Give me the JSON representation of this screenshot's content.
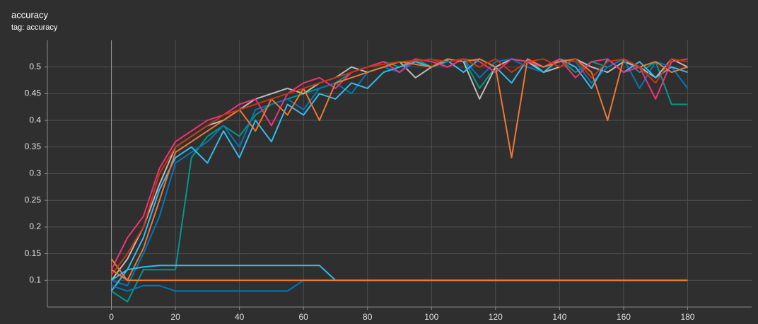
{
  "chart_data": {
    "type": "line",
    "title": "accuracy",
    "subtitle": "tag: accuracy",
    "x": [
      0,
      5,
      10,
      15,
      20,
      25,
      30,
      35,
      40,
      45,
      50,
      55,
      60,
      65,
      70,
      75,
      80,
      85,
      90,
      95,
      100,
      105,
      110,
      115,
      120,
      125,
      130,
      135,
      140,
      145,
      150,
      155,
      160,
      165,
      170,
      175,
      180
    ],
    "xlim": [
      -20,
      200
    ],
    "xticks": [
      0,
      20,
      40,
      60,
      80,
      100,
      120,
      140,
      160,
      180
    ],
    "ylim": [
      0.05,
      0.55
    ],
    "yticks": [
      0.1,
      0.15,
      0.2,
      0.25,
      0.3,
      0.35,
      0.4,
      0.45,
      0.5
    ],
    "grid": true,
    "series": [
      {
        "color": "#009988",
        "values": [
          0.08,
          0.06,
          0.12,
          0.12,
          0.12,
          0.33,
          0.37,
          0.39,
          0.37,
          0.41,
          0.43,
          0.44,
          0.45,
          0.46,
          0.47,
          0.49,
          0.5,
          0.51,
          0.5,
          0.515,
          0.5,
          0.51,
          0.515,
          0.46,
          0.5,
          0.515,
          0.51,
          0.5,
          0.515,
          0.49,
          0.51,
          0.5,
          0.515,
          0.49,
          0.51,
          0.43,
          0.43
        ]
      },
      {
        "color": "#bbbbbb",
        "values": [
          0.1,
          0.14,
          0.2,
          0.28,
          0.35,
          0.37,
          0.39,
          0.4,
          0.42,
          0.44,
          0.45,
          0.46,
          0.45,
          0.47,
          0.48,
          0.5,
          0.49,
          0.5,
          0.51,
          0.48,
          0.5,
          0.515,
          0.51,
          0.44,
          0.5,
          0.515,
          0.51,
          0.49,
          0.5,
          0.515,
          0.5,
          0.49,
          0.51,
          0.5,
          0.48,
          0.515,
          0.5
        ]
      },
      {
        "color": "#0077bb",
        "values": [
          0.1,
          0.09,
          0.15,
          0.22,
          0.32,
          0.34,
          0.36,
          0.39,
          0.35,
          0.42,
          0.43,
          0.44,
          0.42,
          0.46,
          0.47,
          0.45,
          0.49,
          0.5,
          0.49,
          0.51,
          0.515,
          0.5,
          0.515,
          0.48,
          0.51,
          0.515,
          0.5,
          0.49,
          0.515,
          0.51,
          0.47,
          0.5,
          0.515,
          0.46,
          0.51,
          0.5,
          0.46
        ]
      },
      {
        "color": "#33bbee",
        "values": [
          0.08,
          0.12,
          0.18,
          0.27,
          0.33,
          0.35,
          0.32,
          0.38,
          0.33,
          0.4,
          0.36,
          0.43,
          0.41,
          0.45,
          0.44,
          0.47,
          0.46,
          0.49,
          0.5,
          0.51,
          0.5,
          0.512,
          0.49,
          0.515,
          0.5,
          0.47,
          0.515,
          0.49,
          0.515,
          0.5,
          0.46,
          0.515,
          0.49,
          0.51,
          0.48,
          0.5,
          0.49
        ]
      },
      {
        "color": "#ee3377",
        "values": [
          0.12,
          0.18,
          0.22,
          0.31,
          0.36,
          0.38,
          0.4,
          0.41,
          0.43,
          0.44,
          0.39,
          0.45,
          0.47,
          0.48,
          0.46,
          0.49,
          0.5,
          0.51,
          0.49,
          0.515,
          0.51,
          0.5,
          0.515,
          0.51,
          0.49,
          0.515,
          0.51,
          0.5,
          0.515,
          0.48,
          0.51,
          0.515,
          0.49,
          0.5,
          0.44,
          0.51,
          0.515
        ]
      },
      {
        "color": "#ee7733",
        "values": [
          0.14,
          0.1,
          0.16,
          0.25,
          0.34,
          0.36,
          0.38,
          0.4,
          0.42,
          0.38,
          0.44,
          0.41,
          0.46,
          0.4,
          0.47,
          0.48,
          0.49,
          0.5,
          0.51,
          0.505,
          0.5,
          0.515,
          0.51,
          0.515,
          0.5,
          0.33,
          0.515,
          0.5,
          0.51,
          0.515,
          0.49,
          0.4,
          0.515,
          0.5,
          0.51,
          0.49,
          0.5
        ]
      },
      {
        "color": "#cc3311",
        "values": [
          0.11,
          0.15,
          0.2,
          0.3,
          0.35,
          0.37,
          0.39,
          0.41,
          0.42,
          0.43,
          0.44,
          0.45,
          0.46,
          0.47,
          0.48,
          0.49,
          0.5,
          0.505,
          0.51,
          0.512,
          0.514,
          0.51,
          0.515,
          0.5,
          0.515,
          0.49,
          0.51,
          0.515,
          0.5,
          0.515,
          0.48,
          0.51,
          0.515,
          0.5,
          0.47,
          0.515,
          0.51
        ]
      },
      {
        "color": "#33bbee",
        "values": [
          0.1,
          0.12,
          0.125,
          0.128,
          0.128,
          0.128,
          0.128,
          0.128,
          0.128,
          0.128,
          0.128,
          0.128,
          0.128,
          0.128,
          0.1,
          0.1,
          0.1,
          0.1,
          0.1,
          0.1,
          0.1,
          0.1,
          0.1,
          0.1,
          0.1,
          0.1,
          0.1,
          0.1,
          0.1,
          0.1,
          0.1,
          0.1,
          0.1,
          0.1,
          0.1,
          0.1,
          0.1
        ]
      },
      {
        "color": "#0077bb",
        "values": [
          0.09,
          0.08,
          0.09,
          0.09,
          0.08,
          0.08,
          0.08,
          0.08,
          0.08,
          0.08,
          0.08,
          0.08,
          0.1,
          0.1,
          0.1,
          0.1,
          0.1,
          0.1,
          0.1,
          0.1,
          0.1,
          0.1,
          0.1,
          0.1,
          0.1,
          0.1,
          0.1,
          0.1,
          0.1,
          0.1,
          0.1,
          0.1,
          0.1,
          0.1,
          0.1,
          0.1,
          0.1
        ]
      },
      {
        "color": "#ee7733",
        "values": [
          0.12,
          0.1,
          0.1,
          0.1,
          0.1,
          0.1,
          0.1,
          0.1,
          0.1,
          0.1,
          0.1,
          0.1,
          0.1,
          0.1,
          0.1,
          0.1,
          0.1,
          0.1,
          0.1,
          0.1,
          0.1,
          0.1,
          0.1,
          0.1,
          0.1,
          0.1,
          0.1,
          0.1,
          0.1,
          0.1,
          0.1,
          0.1,
          0.1,
          0.1,
          0.1,
          0.1,
          0.1
        ]
      }
    ]
  }
}
